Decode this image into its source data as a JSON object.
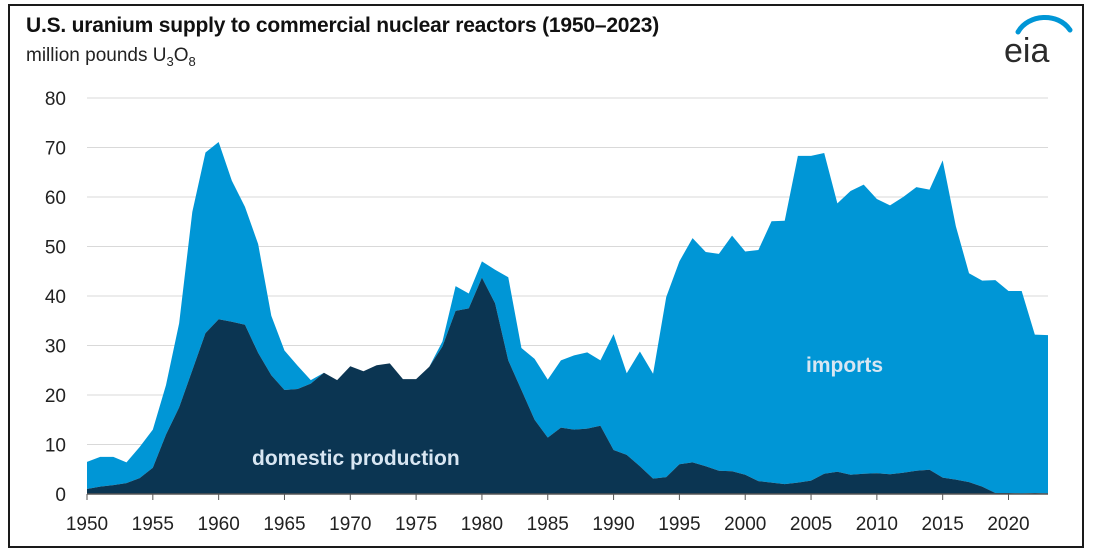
{
  "title": "U.S. uranium supply to commercial nuclear reactors (1950–2023)",
  "subtitle_prefix": "million pounds U",
  "subtitle_sub1": "3",
  "subtitle_mid": "O",
  "subtitle_sub2": "8",
  "logo_text": "eia",
  "colors": {
    "domestic": "#0b3552",
    "imports": "#0096d6",
    "grid": "#d9d9d9",
    "logo_arc": "#0096d6"
  },
  "chart_data": {
    "type": "area",
    "stacked": true,
    "title": "U.S. uranium supply to commercial nuclear reactors (1950–2023)",
    "ylabel": "million pounds U3O8",
    "xlabel": "",
    "ylim": [
      0,
      80
    ],
    "yticks": [
      0,
      10,
      20,
      30,
      40,
      50,
      60,
      70,
      80
    ],
    "xticks": [
      1950,
      1955,
      1960,
      1965,
      1970,
      1975,
      1980,
      1985,
      1990,
      1995,
      2000,
      2005,
      2010,
      2015,
      2020
    ],
    "x": [
      1950,
      1951,
      1952,
      1953,
      1954,
      1955,
      1956,
      1957,
      1958,
      1959,
      1960,
      1961,
      1962,
      1963,
      1964,
      1965,
      1966,
      1967,
      1968,
      1969,
      1970,
      1971,
      1972,
      1973,
      1974,
      1975,
      1976,
      1977,
      1978,
      1979,
      1980,
      1981,
      1982,
      1983,
      1984,
      1985,
      1986,
      1987,
      1988,
      1989,
      1990,
      1991,
      1992,
      1993,
      1994,
      1995,
      1996,
      1997,
      1998,
      1999,
      2000,
      2001,
      2002,
      2003,
      2004,
      2005,
      2006,
      2007,
      2008,
      2009,
      2010,
      2011,
      2012,
      2013,
      2014,
      2015,
      2016,
      2017,
      2018,
      2019,
      2020,
      2021,
      2022,
      2023
    ],
    "series": [
      {
        "name": "domestic production",
        "values": [
          1,
          1.5,
          1.8,
          2.2,
          3.2,
          5.3,
          12,
          17.5,
          25,
          32.5,
          35.3,
          34.8,
          34.2,
          28.5,
          24,
          21,
          21.2,
          22.3,
          24.5,
          23,
          25.8,
          24.8,
          26,
          26.4,
          23.2,
          23.2,
          25.7,
          29.8,
          37,
          37.5,
          43.7,
          38.5,
          27,
          21,
          15,
          11.4,
          13.4,
          13,
          13.2,
          13.8,
          8.9,
          7.9,
          5.6,
          3.1,
          3.4,
          6,
          6.4,
          5.6,
          4.7,
          4.6,
          3.9,
          2.6,
          2.3,
          2,
          2.3,
          2.7,
          4.1,
          4.5,
          3.9,
          4.1,
          4.2,
          4,
          4.3,
          4.7,
          4.9,
          3.3,
          2.9,
          2.4,
          1.5,
          0.2,
          0.2,
          0.1,
          0.2,
          0.1
        ]
      },
      {
        "name": "imports",
        "values": [
          5.5,
          6,
          5.7,
          4.2,
          6.3,
          7.7,
          10,
          17,
          32,
          36.5,
          35.8,
          28.5,
          23.8,
          22,
          12,
          8,
          4.7,
          0.7,
          0,
          0,
          0,
          0,
          0,
          0,
          0,
          0,
          0,
          1,
          5,
          3,
          3.3,
          6.8,
          16.8,
          8.5,
          12.3,
          11.7,
          13.6,
          15,
          15.4,
          13.2,
          23.4,
          16.5,
          23.2,
          21.2,
          36.4,
          41,
          45.3,
          43.3,
          43.8,
          47.6,
          45.1,
          46.7,
          52.8,
          53.2,
          66,
          65.6,
          64.8,
          54.2,
          57.3,
          58.4,
          55.4,
          54.3,
          55.7,
          57.3,
          56.6,
          64.1,
          51.2,
          42.2,
          41.6,
          43,
          40.8,
          40.9,
          32,
          32
        ]
      }
    ],
    "annotations": [
      {
        "text": "domestic production",
        "series": "domestic production"
      },
      {
        "text": "imports",
        "series": "imports"
      }
    ]
  }
}
